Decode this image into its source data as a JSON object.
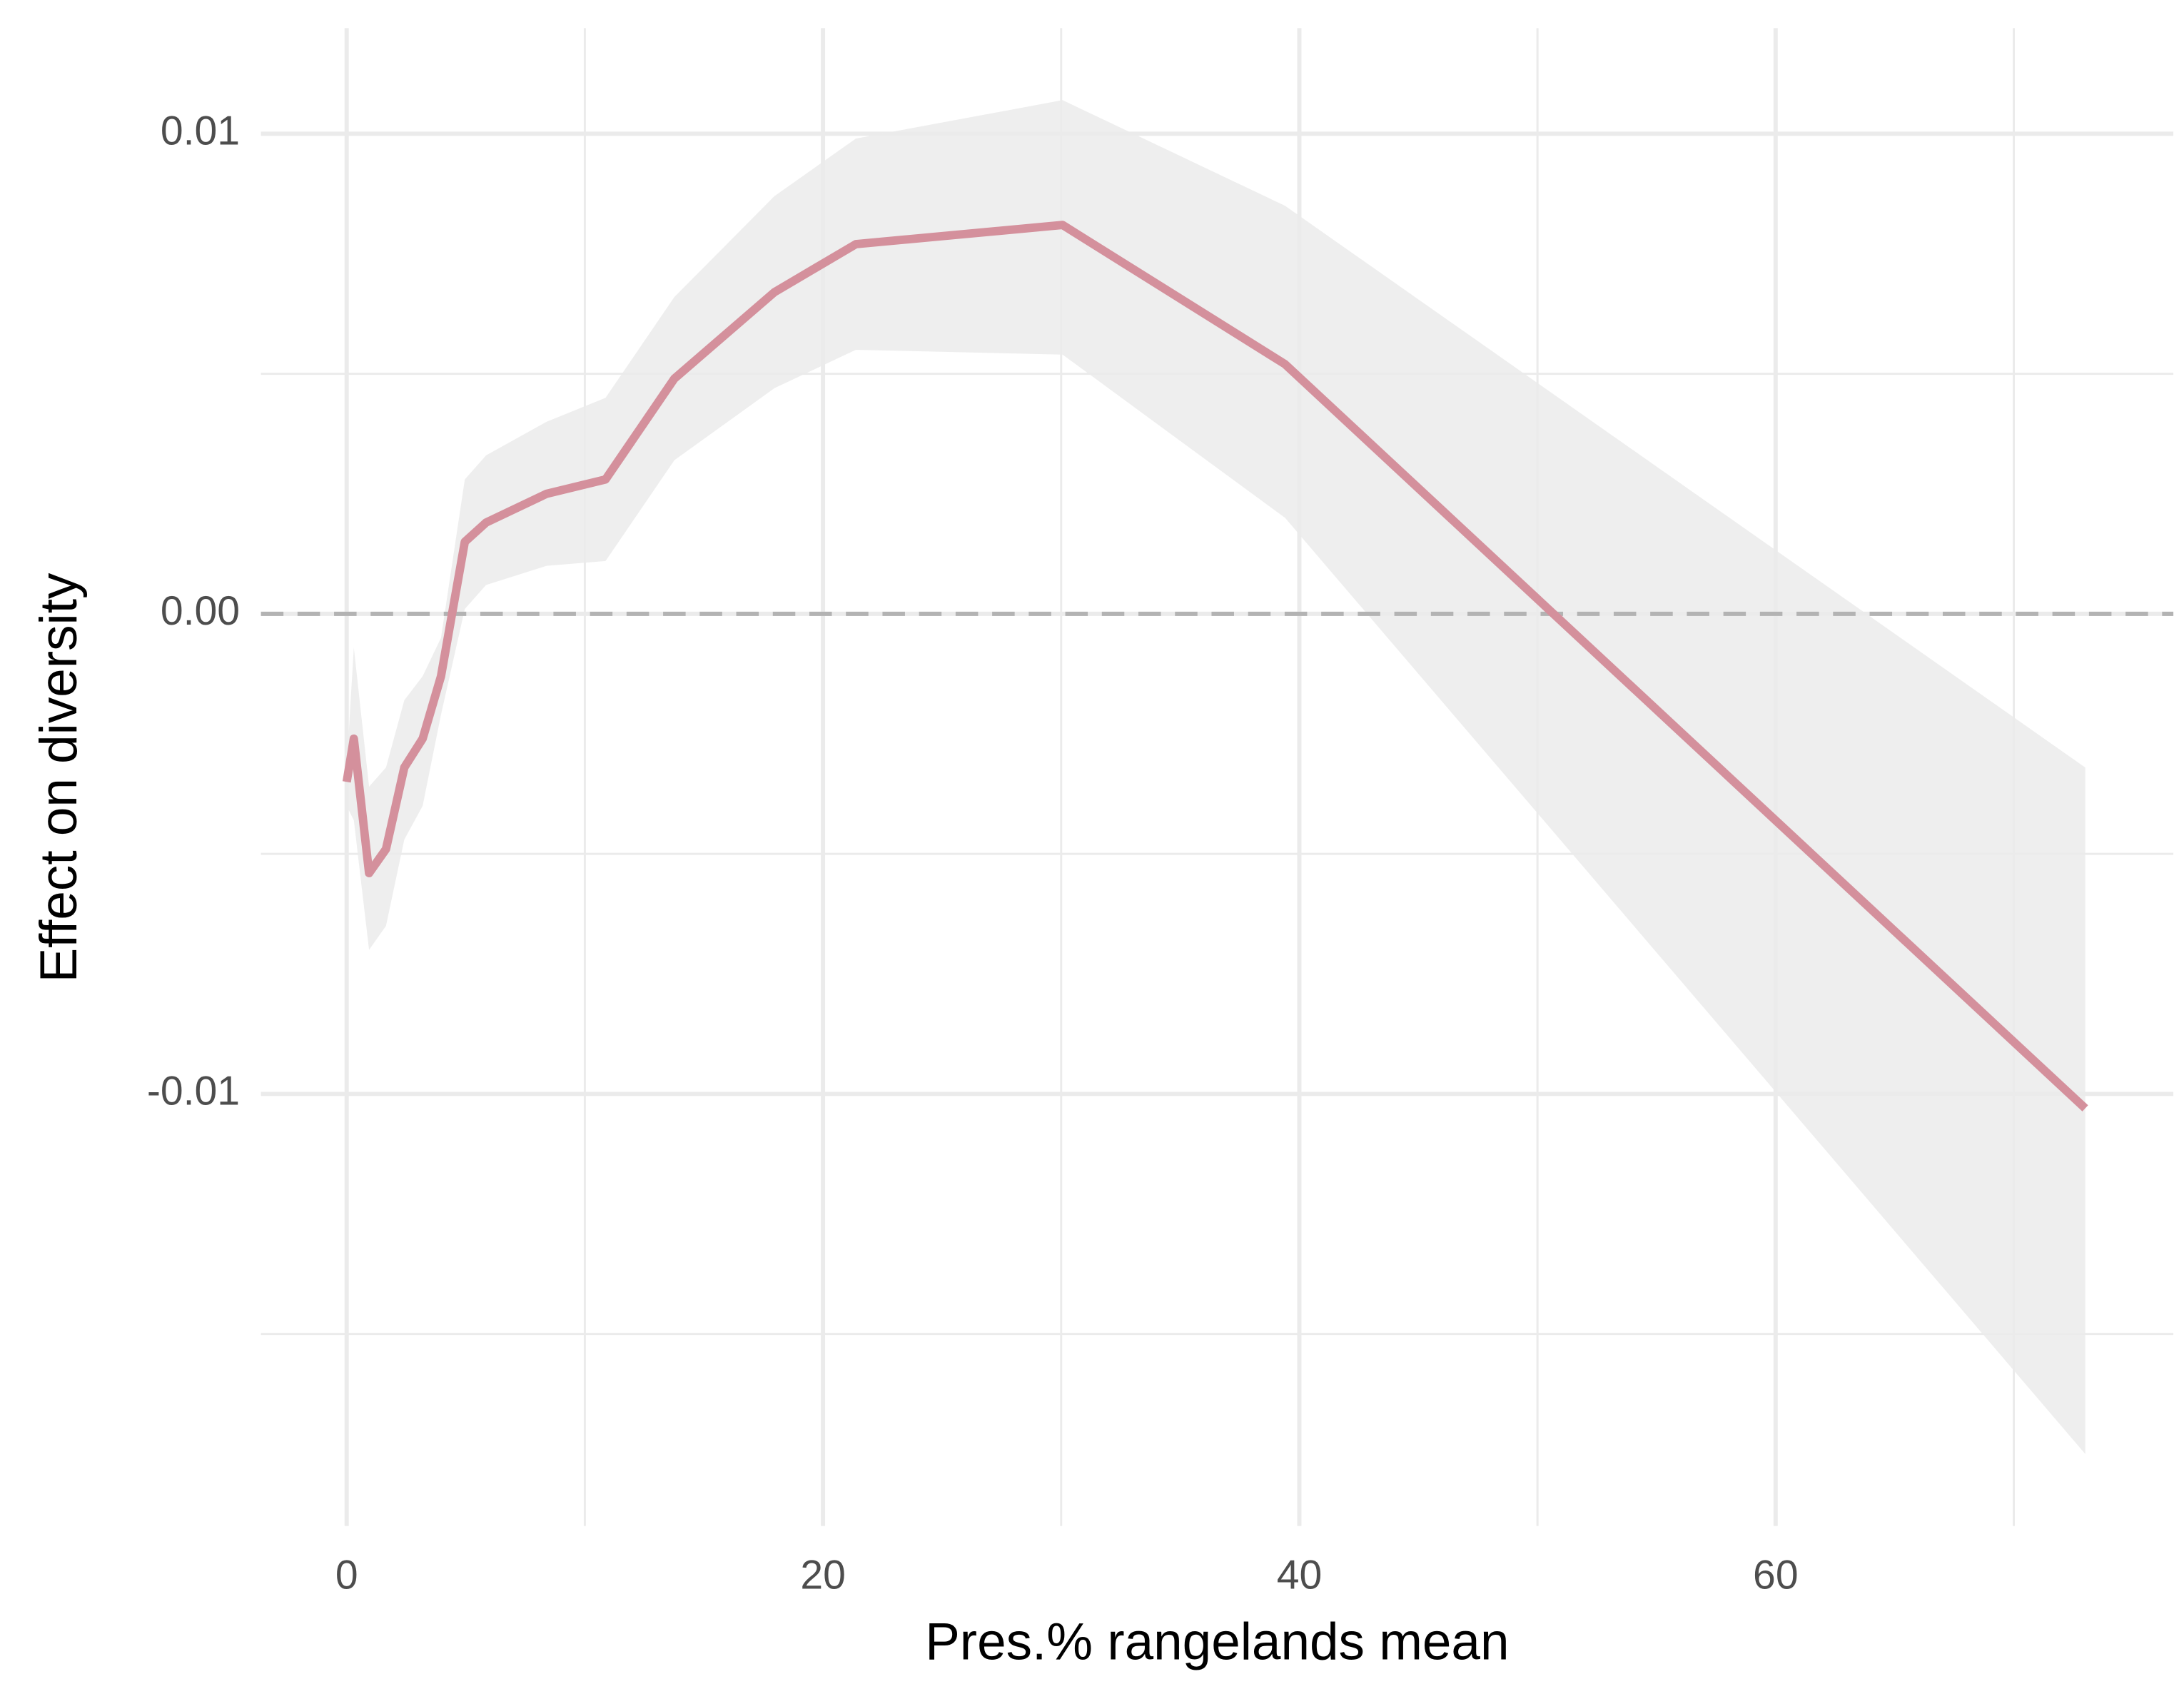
{
  "chart_data": {
    "type": "line",
    "x_label": "Pres.% rangelands mean",
    "y_label": "Effect on diversity",
    "x": [
      0,
      0.3,
      0.94,
      1.65,
      2.42,
      3.19,
      3.96,
      4.96,
      5.85,
      8.39,
      10.87,
      13.76,
      17.96,
      21.38,
      30.06,
      39.4,
      73.0
    ],
    "values": [
      -0.0035,
      -0.0026,
      -0.0054,
      -0.0049,
      -0.0032,
      -0.0026,
      -0.0013,
      0.0015,
      0.0019,
      0.0025,
      0.0028,
      0.0049,
      0.0067,
      0.0077,
      0.0081,
      0.0052,
      -0.0103
    ],
    "upper": [
      -0.0032,
      -0.0007,
      -0.0036,
      -0.0032,
      -0.0018,
      -0.0013,
      -0.0005,
      0.0028,
      0.0033,
      0.004,
      0.0045,
      0.0066,
      0.0087,
      0.0099,
      0.0107,
      0.0085,
      -0.0032
    ],
    "lower": [
      -0.004,
      -0.0043,
      -0.007,
      -0.0065,
      -0.0047,
      -0.004,
      -0.0021,
      0.0001,
      0.0006,
      0.001,
      0.0011,
      0.0032,
      0.0047,
      0.0055,
      0.0054,
      0.002,
      -0.0175
    ],
    "color": "#d4909c",
    "ribbon_color": "#ebebeb",
    "hline": 0,
    "xlim": [
      -3.6,
      76.7
    ],
    "ylim": [
      -0.019,
      0.0122
    ],
    "xticks": [
      0,
      20,
      40,
      60
    ],
    "yticks": [
      0.01,
      {
        "value": 0,
        "label": "0.00"
      },
      -0.01
    ],
    "x_minor_ticks": [
      10,
      30,
      50,
      70
    ],
    "y_minor_ticks": [
      0.005,
      -0.005,
      -0.015
    ],
    "grid": true
  }
}
